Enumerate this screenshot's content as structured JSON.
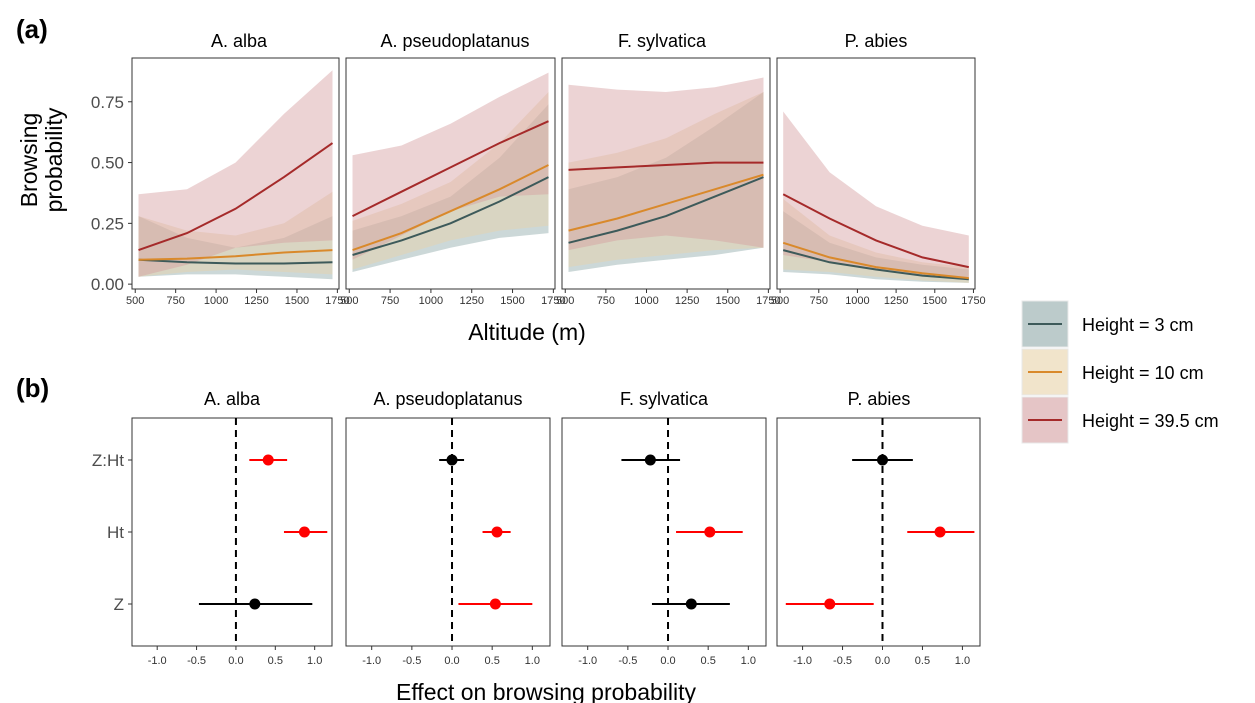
{
  "panel_labels": [
    "(a)",
    "(b)"
  ],
  "species": [
    "A. alba",
    "A. pseudoplatanus",
    "F. sylvatica",
    "P. abies"
  ],
  "colors": {
    "h3": "#3d5a5a",
    "h10": "#d9892b",
    "h39": "#a52a2a",
    "h3_fill": "#8fa8a8",
    "h10_fill": "#e8d2a8",
    "h39_fill": "#d49ea0",
    "significant": "#ff0000",
    "nonsignificant": "#000000"
  },
  "legend": [
    {
      "label": "Height = 3 cm",
      "key": "h3"
    },
    {
      "label": "Height = 10 cm",
      "key": "h10"
    },
    {
      "label": "Height = 39.5 cm",
      "key": "h39"
    }
  ],
  "chart_data": [
    {
      "type": "line",
      "panel": "(a)",
      "xlabel": "Altitude (m)",
      "ylabel": "Browsing probability",
      "xlim": [
        480,
        1760
      ],
      "ylim": [
        -0.02,
        0.93
      ],
      "x_ticks": [
        500,
        750,
        1000,
        1250,
        1500,
        1750
      ],
      "y_ticks": [
        0.0,
        0.25,
        0.5,
        0.75
      ],
      "y_tick_labels": [
        "0.00",
        "0.25",
        "0.50",
        "0.75"
      ],
      "x": [
        520,
        820,
        1120,
        1420,
        1720
      ],
      "facets": [
        {
          "name": "A. alba",
          "series": [
            {
              "name": "Height = 3 cm",
              "key": "h3",
              "values": [
                0.1,
                0.09,
                0.085,
                0.085,
                0.09
              ],
              "lower": [
                0.03,
                0.04,
                0.04,
                0.03,
                0.02
              ],
              "upper": [
                0.28,
                0.19,
                0.15,
                0.19,
                0.28
              ]
            },
            {
              "name": "Height = 10 cm",
              "key": "h10",
              "values": [
                0.1,
                0.105,
                0.115,
                0.13,
                0.14
              ],
              "lower": [
                0.03,
                0.05,
                0.06,
                0.05,
                0.04
              ],
              "upper": [
                0.28,
                0.22,
                0.2,
                0.25,
                0.38
              ]
            },
            {
              "name": "Height = 39.5 cm",
              "key": "h39",
              "values": [
                0.14,
                0.21,
                0.31,
                0.44,
                0.58
              ],
              "lower": [
                0.03,
                0.08,
                0.15,
                0.17,
                0.18
              ],
              "upper": [
                0.37,
                0.39,
                0.5,
                0.7,
                0.88
              ]
            }
          ]
        },
        {
          "name": "A. pseudoplatanus",
          "series": [
            {
              "name": "Height = 3 cm",
              "key": "h3",
              "values": [
                0.12,
                0.18,
                0.25,
                0.34,
                0.44
              ],
              "lower": [
                0.05,
                0.1,
                0.15,
                0.19,
                0.21
              ],
              "upper": [
                0.22,
                0.28,
                0.36,
                0.52,
                0.74
              ]
            },
            {
              "name": "Height = 10 cm",
              "key": "h10",
              "values": [
                0.14,
                0.21,
                0.3,
                0.39,
                0.49
              ],
              "lower": [
                0.06,
                0.12,
                0.18,
                0.22,
                0.24
              ],
              "upper": [
                0.26,
                0.33,
                0.42,
                0.58,
                0.79
              ]
            },
            {
              "name": "Height = 39.5 cm",
              "key": "h39",
              "values": [
                0.28,
                0.38,
                0.48,
                0.58,
                0.67
              ],
              "lower": [
                0.1,
                0.2,
                0.3,
                0.36,
                0.37
              ],
              "upper": [
                0.53,
                0.57,
                0.66,
                0.77,
                0.87
              ]
            }
          ]
        },
        {
          "name": "F. sylvatica",
          "series": [
            {
              "name": "Height = 3 cm",
              "key": "h3",
              "values": [
                0.17,
                0.22,
                0.28,
                0.36,
                0.44
              ],
              "lower": [
                0.05,
                0.08,
                0.1,
                0.12,
                0.15
              ],
              "upper": [
                0.39,
                0.44,
                0.52,
                0.65,
                0.79
              ]
            },
            {
              "name": "Height = 10 cm",
              "key": "h10",
              "values": [
                0.22,
                0.27,
                0.33,
                0.39,
                0.45
              ],
              "lower": [
                0.07,
                0.1,
                0.12,
                0.14,
                0.15
              ],
              "upper": [
                0.5,
                0.54,
                0.6,
                0.7,
                0.79
              ]
            },
            {
              "name": "Height = 39.5 cm",
              "key": "h39",
              "values": [
                0.47,
                0.48,
                0.49,
                0.5,
                0.5
              ],
              "lower": [
                0.14,
                0.18,
                0.2,
                0.18,
                0.15
              ],
              "upper": [
                0.82,
                0.8,
                0.79,
                0.81,
                0.85
              ]
            }
          ]
        },
        {
          "name": "P. abies",
          "series": [
            {
              "name": "Height = 3 cm",
              "key": "h3",
              "values": [
                0.14,
                0.09,
                0.06,
                0.035,
                0.02
              ],
              "lower": [
                0.05,
                0.04,
                0.02,
                0.01,
                0.005
              ],
              "upper": [
                0.3,
                0.17,
                0.11,
                0.08,
                0.06
              ]
            },
            {
              "name": "Height = 10 cm",
              "key": "h10",
              "values": [
                0.17,
                0.11,
                0.07,
                0.045,
                0.025
              ],
              "lower": [
                0.06,
                0.05,
                0.03,
                0.015,
                0.005
              ],
              "upper": [
                0.35,
                0.2,
                0.13,
                0.09,
                0.07
              ]
            },
            {
              "name": "Height = 39.5 cm",
              "key": "h39",
              "values": [
                0.37,
                0.27,
                0.18,
                0.11,
                0.07
              ],
              "lower": [
                0.12,
                0.09,
                0.06,
                0.03,
                0.02
              ],
              "upper": [
                0.71,
                0.46,
                0.32,
                0.24,
                0.2
              ]
            }
          ]
        }
      ]
    },
    {
      "type": "scatter",
      "panel": "(b)",
      "xlabel": "Effect on browsing probability",
      "xlim": [
        -1.32,
        1.22
      ],
      "x_ticks": [
        -1.0,
        -0.5,
        0.0,
        0.5,
        1.0
      ],
      "x_tick_labels": [
        "-1.0",
        "-0.5",
        "0.0",
        "0.5",
        "1.0"
      ],
      "categories": [
        "Z:Ht",
        "Ht",
        "Z"
      ],
      "reference_line": 0,
      "facets": [
        {
          "name": "A. alba",
          "points": [
            {
              "term": "Z:Ht",
              "estimate": 0.41,
              "lower": 0.17,
              "upper": 0.65,
              "significant": true
            },
            {
              "term": "Ht",
              "estimate": 0.87,
              "lower": 0.61,
              "upper": 1.16,
              "significant": true
            },
            {
              "term": "Z",
              "estimate": 0.24,
              "lower": -0.47,
              "upper": 0.97,
              "significant": false
            }
          ]
        },
        {
          "name": "A. pseudoplatanus",
          "points": [
            {
              "term": "Z:Ht",
              "estimate": 0.0,
              "lower": -0.16,
              "upper": 0.15,
              "significant": false
            },
            {
              "term": "Ht",
              "estimate": 0.56,
              "lower": 0.38,
              "upper": 0.73,
              "significant": true
            },
            {
              "term": "Z",
              "estimate": 0.54,
              "lower": 0.08,
              "upper": 1.0,
              "significant": true
            }
          ]
        },
        {
          "name": "F. sylvatica",
          "points": [
            {
              "term": "Z:Ht",
              "estimate": -0.22,
              "lower": -0.58,
              "upper": 0.15,
              "significant": false
            },
            {
              "term": "Ht",
              "estimate": 0.52,
              "lower": 0.1,
              "upper": 0.93,
              "significant": true
            },
            {
              "term": "Z",
              "estimate": 0.29,
              "lower": -0.2,
              "upper": 0.77,
              "significant": false
            }
          ]
        },
        {
          "name": "P. abies",
          "points": [
            {
              "term": "Z:Ht",
              "estimate": 0.0,
              "lower": -0.38,
              "upper": 0.38,
              "significant": false
            },
            {
              "term": "Ht",
              "estimate": 0.72,
              "lower": 0.31,
              "upper": 1.15,
              "significant": true
            },
            {
              "term": "Z",
              "estimate": -0.66,
              "lower": -1.21,
              "upper": -0.11,
              "significant": true
            }
          ]
        }
      ]
    }
  ]
}
